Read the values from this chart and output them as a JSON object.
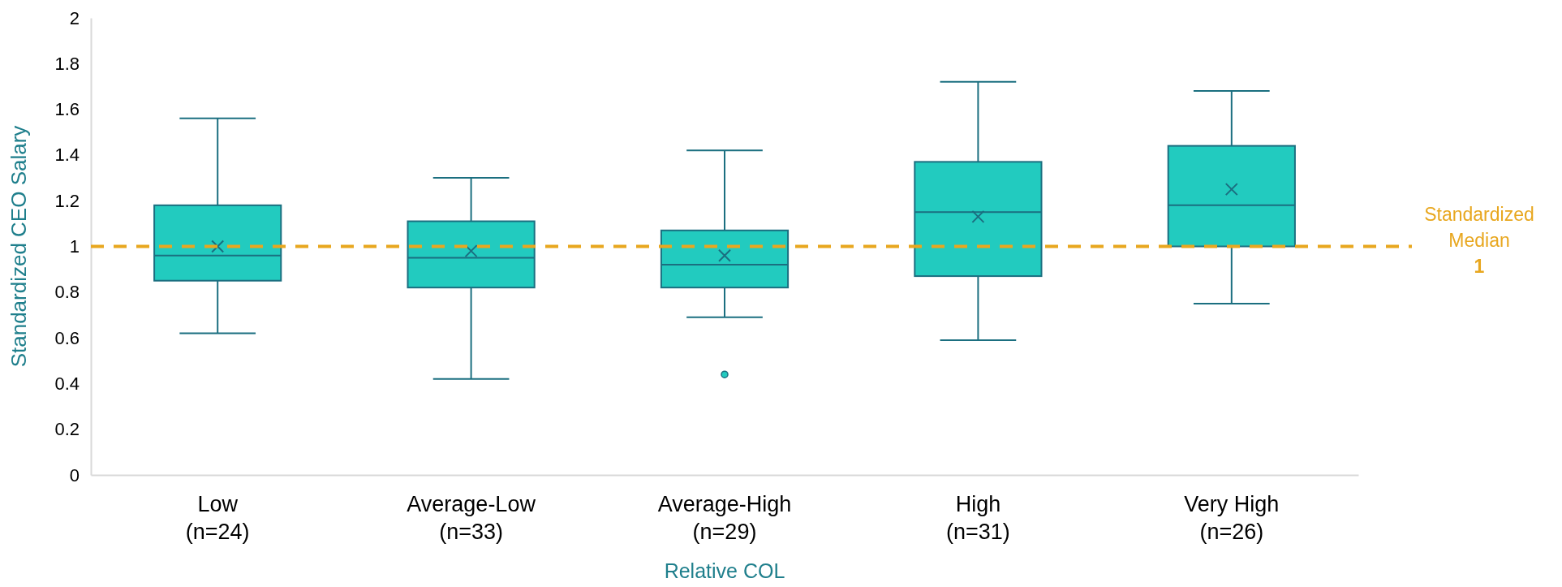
{
  "chart_data": {
    "type": "box",
    "xlabel": "Relative COL",
    "ylabel": "Standardized CEO Salary",
    "categories": [
      "Low\n(n=24)",
      "Average-Low\n(n=33)",
      "Average-High\n(n=29)",
      "High\n(n=31)",
      "Very High\n(n=26)"
    ],
    "boxes": [
      {
        "low": 0.62,
        "q1": 0.85,
        "median": 0.96,
        "q3": 1.18,
        "high": 1.56,
        "mean": 1.0
      },
      {
        "low": 0.42,
        "q1": 0.82,
        "median": 0.95,
        "q3": 1.11,
        "high": 1.3,
        "mean": 0.98
      },
      {
        "low": 0.69,
        "q1": 0.82,
        "median": 0.92,
        "q3": 1.07,
        "high": 1.42,
        "mean": 0.96,
        "outliers": [
          0.44
        ]
      },
      {
        "low": 0.59,
        "q1": 0.87,
        "median": 1.15,
        "q3": 1.37,
        "high": 1.72,
        "mean": 1.13
      },
      {
        "low": 0.75,
        "q1": 1.0,
        "median": 1.18,
        "q3": 1.44,
        "high": 1.68,
        "mean": 1.25
      }
    ],
    "color": "#22cbbf",
    "ylim": [
      0,
      2
    ],
    "yticks": [
      0,
      0.2,
      0.4,
      0.6,
      0.8,
      1,
      1.2,
      1.4,
      1.6,
      1.8,
      2
    ],
    "ref_lines": [
      {
        "axis": "y",
        "value": 1,
        "label": "Standardized\nMedian\n1",
        "color": "#e8a71f",
        "line_style": "dashed"
      }
    ]
  }
}
